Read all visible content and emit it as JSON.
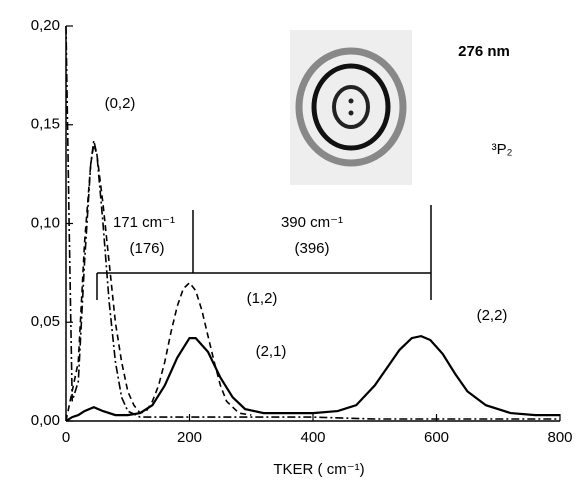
{
  "chart_data": {
    "type": "line",
    "xlabel": "TKER ( cm⁻¹)",
    "xlim": [
      0,
      800
    ],
    "xticks": [
      0,
      200,
      400,
      600,
      800
    ],
    "ylim": [
      0,
      0.2
    ],
    "yticks": [
      {
        "value": 0,
        "label": "0,00"
      },
      {
        "value": 0.05,
        "label": "0,05"
      },
      {
        "value": 0.1,
        "label": "0,10"
      },
      {
        "value": 0.15,
        "label": "0,15"
      },
      {
        "value": 0.2,
        "label": "0,20"
      }
    ],
    "annotations": [
      "(0,2)",
      "171 cm⁻¹",
      "(176)",
      "390 cm⁻¹",
      "(396)",
      "(1,2)",
      "(2,1)",
      "(2,2)",
      "276 nm",
      "³P₂"
    ],
    "series": [
      {
        "style": "solid",
        "color": "#000000",
        "x": [
          0,
          10,
          20,
          30,
          45,
          60,
          80,
          100,
          120,
          140,
          160,
          180,
          200,
          210,
          230,
          250,
          270,
          290,
          320,
          360,
          400,
          440,
          470,
          500,
          520,
          540,
          560,
          575,
          590,
          610,
          630,
          650,
          680,
          720,
          760,
          800
        ],
        "values": [
          0,
          0.002,
          0.003,
          0.005,
          0.007,
          0.005,
          0.003,
          0.003,
          0.004,
          0.008,
          0.018,
          0.032,
          0.042,
          0.042,
          0.035,
          0.022,
          0.012,
          0.006,
          0.004,
          0.004,
          0.004,
          0.005,
          0.008,
          0.018,
          0.027,
          0.036,
          0.042,
          0.043,
          0.041,
          0.034,
          0.024,
          0.015,
          0.008,
          0.004,
          0.003,
          0.003
        ]
      },
      {
        "style": "dashed",
        "color": "#000000",
        "x": [
          0,
          20,
          30,
          40,
          45,
          50,
          60,
          70,
          80,
          90,
          100,
          110,
          120,
          130,
          140,
          150,
          160,
          170,
          180,
          190,
          200,
          210,
          220,
          230,
          240,
          250,
          260,
          280,
          300
        ],
        "values": [
          0,
          0.03,
          0.09,
          0.13,
          0.14,
          0.135,
          0.11,
          0.08,
          0.05,
          0.03,
          0.015,
          0.008,
          0.004,
          0.005,
          0.01,
          0.018,
          0.03,
          0.045,
          0.058,
          0.067,
          0.07,
          0.066,
          0.056,
          0.043,
          0.03,
          0.018,
          0.01,
          0.004,
          0.003
        ]
      },
      {
        "style": "dashdot",
        "color": "#000000",
        "x": [
          0,
          5,
          10,
          20,
          30,
          40,
          45,
          50,
          60,
          70,
          80,
          90,
          100,
          120,
          150,
          200,
          300,
          400,
          500,
          600,
          700,
          800
        ],
        "values": [
          0.2,
          0.1,
          0.01,
          0.02,
          0.08,
          0.13,
          0.142,
          0.135,
          0.1,
          0.06,
          0.03,
          0.012,
          0.005,
          0.002,
          0.002,
          0.002,
          0.002,
          0.002,
          0.001,
          0.001,
          0.001,
          0.001
        ]
      }
    ]
  }
}
